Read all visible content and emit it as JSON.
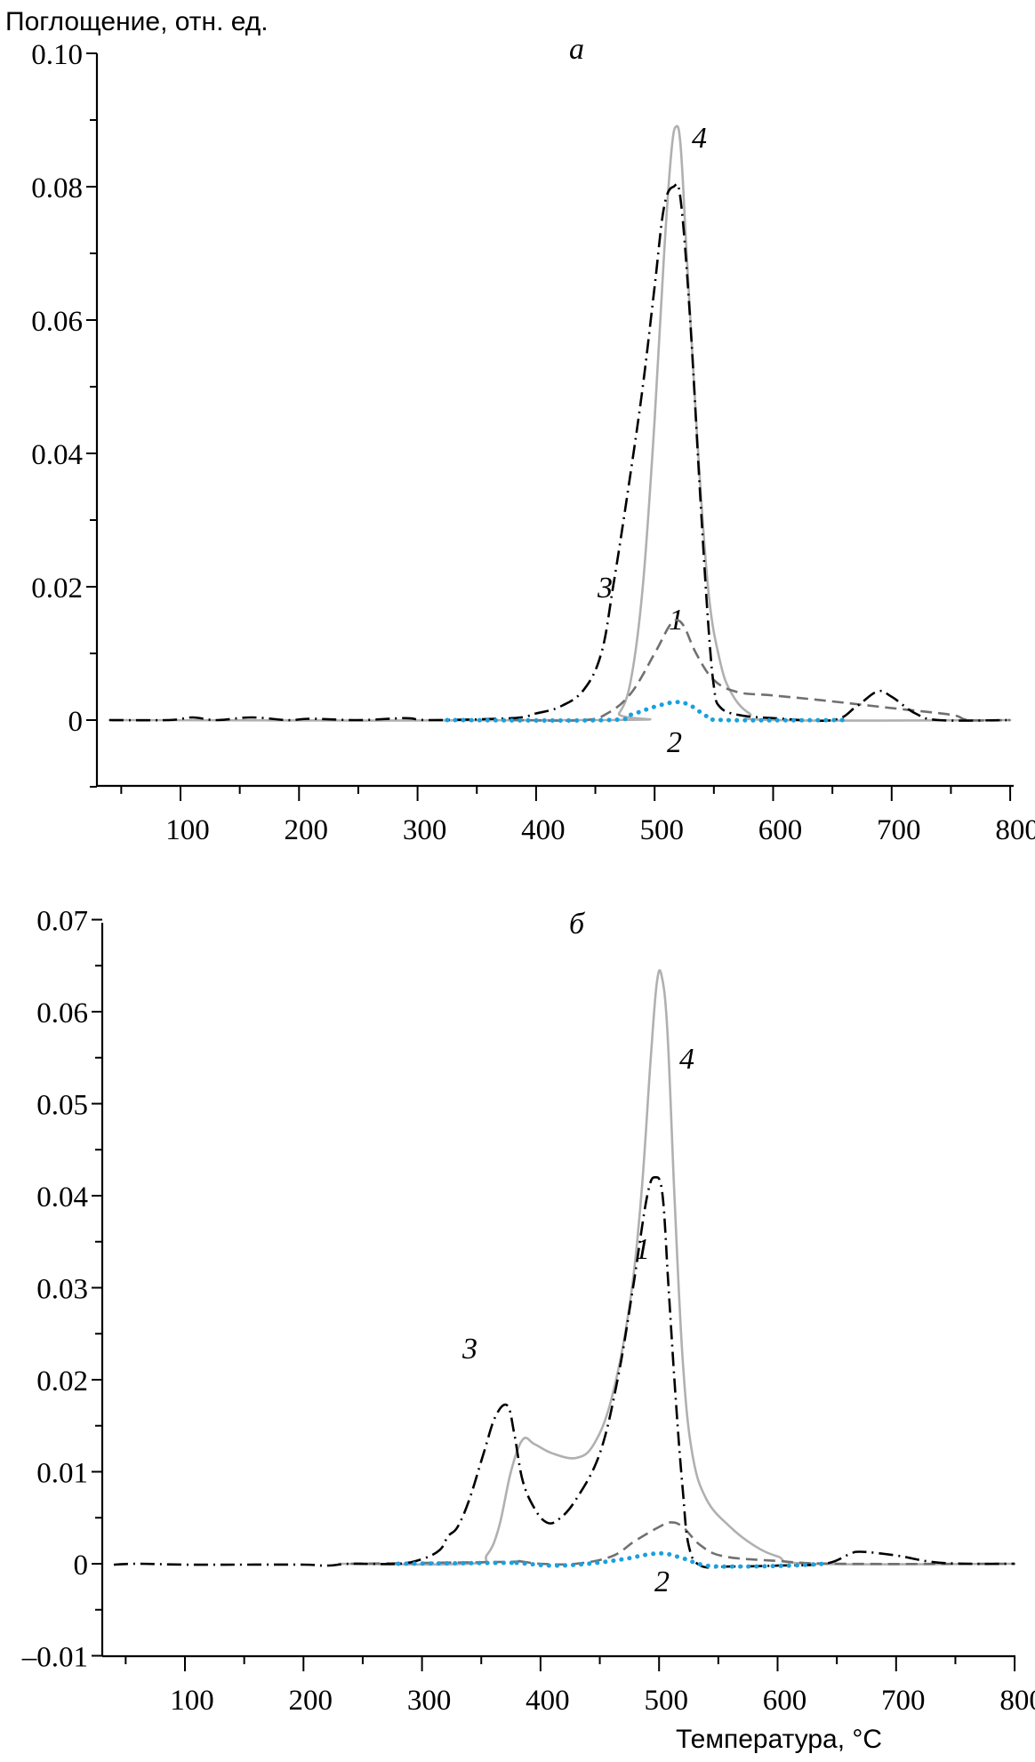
{
  "chart_data": [
    {
      "type": "line",
      "panel_label": "а",
      "ylabel": "Поглощение, отн. ед.",
      "xlabel": "",
      "xlim": [
        30,
        800
      ],
      "ylim": [
        -0.01,
        0.1
      ],
      "x_ticks": [
        100,
        200,
        300,
        400,
        500,
        600,
        700,
        800
      ],
      "x_tick_labels": [
        "100",
        "200",
        "300",
        "400",
        "500",
        "600",
        "700",
        "800"
      ],
      "y_ticks": [
        0,
        0.02,
        0.04,
        0.06,
        0.08,
        0.1
      ],
      "y_tick_labels": [
        "0",
        "0.02",
        "0.04",
        "0.06",
        "0.08",
        "0.10"
      ],
      "grid": false,
      "series": [
        {
          "name": "1",
          "style": "dashed",
          "color": "#707070",
          "x": [
            380,
            440,
            460,
            480,
            500,
            512,
            518,
            525,
            535,
            550,
            570,
            600,
            650,
            700,
            750,
            765,
            800
          ],
          "y": [
            0,
            0,
            0.001,
            0.004,
            0.01,
            0.014,
            0.015,
            0.014,
            0.01,
            0.006,
            0.0042,
            0.0037,
            0.0028,
            0.0018,
            0.0008,
            0,
            0
          ]
        },
        {
          "name": "2",
          "style": "dotted",
          "color": "#1aa0e0",
          "x": [
            325,
            460,
            480,
            500,
            518,
            530,
            545,
            560,
            660
          ],
          "y": [
            0,
            0,
            0.0008,
            0.002,
            0.0027,
            0.0022,
            0.0005,
            0,
            0
          ]
        },
        {
          "name": "3",
          "style": "dashdot",
          "color": "#000000",
          "x": [
            40,
            90,
            110,
            130,
            160,
            190,
            210,
            250,
            290,
            310,
            380,
            400,
            420,
            440,
            455,
            465,
            478,
            490,
            500,
            508,
            516,
            522,
            530,
            538,
            545,
            550,
            555,
            570,
            600,
            650,
            670,
            688,
            700,
            720,
            740,
            800
          ],
          "y": [
            0,
            0,
            0.0004,
            0,
            0.0004,
            0,
            0.0002,
            0,
            0.0003,
            0,
            0.0003,
            0.001,
            0.002,
            0.0045,
            0.01,
            0.02,
            0.035,
            0.05,
            0.065,
            0.077,
            0.08,
            0.078,
            0.06,
            0.035,
            0.015,
            0.005,
            0.002,
            0.0008,
            0.0003,
            0,
            0.002,
            0.0043,
            0.0035,
            0.001,
            0,
            0
          ]
        },
        {
          "name": "4",
          "style": "solid",
          "color": "#b0b0b0",
          "x": [
            40,
            460,
            470,
            480,
            490,
            500,
            508,
            514,
            518,
            522,
            527,
            535,
            545,
            555,
            565,
            580,
            600,
            800
          ],
          "y": [
            0,
            0,
            0.001,
            0.006,
            0.02,
            0.045,
            0.07,
            0.085,
            0.089,
            0.086,
            0.07,
            0.045,
            0.02,
            0.009,
            0.004,
            0.001,
            0,
            0
          ]
        }
      ]
    },
    {
      "type": "line",
      "panel_label": "б",
      "ylabel": "",
      "xlabel": "Температура, °C",
      "xlim": [
        30,
        800
      ],
      "ylim": [
        -0.01,
        0.07
      ],
      "x_ticks": [
        100,
        200,
        300,
        400,
        500,
        600,
        700,
        800
      ],
      "x_tick_labels": [
        "100",
        "200",
        "300",
        "400",
        "500",
        "600",
        "700",
        "800"
      ],
      "y_ticks": [
        -0.01,
        0,
        0.01,
        0.02,
        0.03,
        0.04,
        0.05,
        0.06,
        0.07
      ],
      "y_tick_labels": [
        "–0.01",
        "0",
        "0.01",
        "0.02",
        "0.03",
        "0.04",
        "0.05",
        "0.06",
        "0.07"
      ],
      "grid": false,
      "series": [
        {
          "name": "1",
          "style": "dashed",
          "color": "#707070",
          "x": [
            240,
            370,
            380,
            400,
            430,
            460,
            480,
            500,
            510,
            520,
            535,
            555,
            600,
            650,
            800
          ],
          "y": [
            0,
            0.0002,
            0.0003,
            0,
            0,
            0.0008,
            0.0025,
            0.004,
            0.0045,
            0.004,
            0.002,
            0.0008,
            0.0003,
            0,
            0
          ]
        },
        {
          "name": "2",
          "style": "dotted",
          "color": "#1aa0e0",
          "x": [
            280,
            370,
            380,
            410,
            440,
            470,
            490,
            505,
            520,
            540,
            570,
            610,
            640
          ],
          "y": [
            0,
            0.0001,
            0.0001,
            -0.0002,
            0,
            0.0005,
            0.001,
            0.0011,
            0.0006,
            -0.0002,
            -0.0003,
            -0.0002,
            0
          ]
        },
        {
          "name": "3",
          "style": "dashdot",
          "color": "#000000",
          "x": [
            40,
            60,
            100,
            150,
            200,
            220,
            240,
            280,
            300,
            315,
            322,
            330,
            340,
            352,
            362,
            372,
            378,
            385,
            395,
            405,
            415,
            430,
            450,
            465,
            478,
            490,
            497,
            503,
            508,
            514,
            520,
            525,
            535,
            560,
            600,
            640,
            660,
            670,
            700,
            730,
            760,
            800
          ],
          "y": [
            -0.0001,
            0,
            -0.0001,
            -0.0001,
            -0.0001,
            -0.0002,
            0,
            0,
            0.0005,
            0.0015,
            0.003,
            0.004,
            0.007,
            0.012,
            0.016,
            0.0172,
            0.014,
            0.009,
            0.006,
            0.0045,
            0.0048,
            0.007,
            0.012,
            0.02,
            0.03,
            0.04,
            0.042,
            0.04,
            0.03,
            0.018,
            0.008,
            0.002,
            -0.0002,
            -0.0003,
            -0.0002,
            0,
            0.001,
            0.0013,
            0.0009,
            0.0002,
            0,
            0
          ]
        },
        {
          "name": "4",
          "style": "solid",
          "color": "#b0b0b0",
          "x": [
            230,
            340,
            355,
            365,
            375,
            385,
            395,
            410,
            430,
            445,
            460,
            475,
            485,
            493,
            498,
            502,
            507,
            513,
            520,
            528,
            540,
            560,
            580,
            600,
            630,
            800
          ],
          "y": [
            0,
            0,
            0.001,
            0.004,
            0.01,
            0.0135,
            0.013,
            0.012,
            0.0115,
            0.013,
            0.018,
            0.028,
            0.04,
            0.055,
            0.063,
            0.064,
            0.058,
            0.04,
            0.022,
            0.012,
            0.007,
            0.004,
            0.002,
            0.0008,
            0,
            0
          ]
        }
      ]
    }
  ]
}
